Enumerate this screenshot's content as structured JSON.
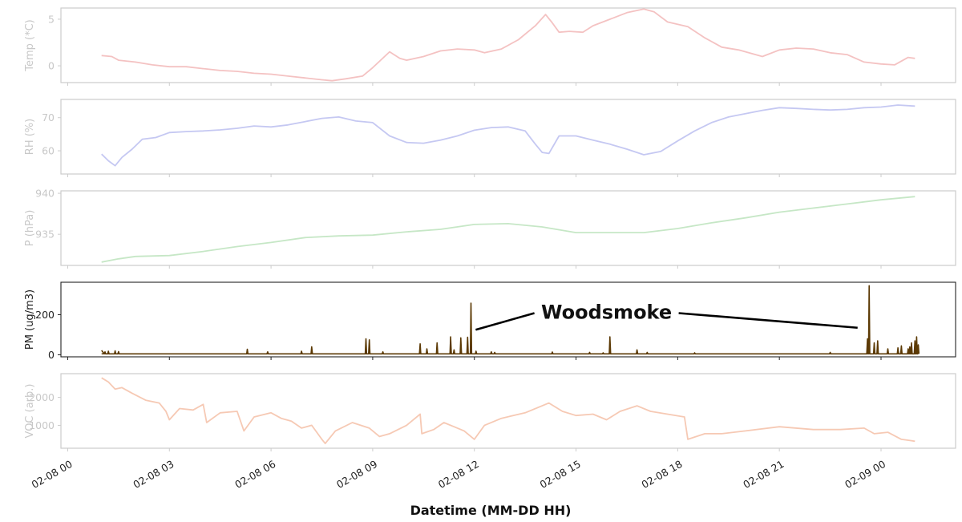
{
  "chart_data": {
    "type": "line",
    "xlabel": "Datetime (MM-DD HH)",
    "x_ticks": [
      "02-08 00",
      "02-08 03",
      "02-08 06",
      "02-08 09",
      "02-08 12",
      "02-08 15",
      "02-08 18",
      "02-08 21",
      "02-09 00"
    ],
    "x_tick_hours": [
      0,
      3,
      6,
      9,
      12,
      15,
      18,
      21,
      24
    ],
    "xlim_hours": [
      -0.2,
      26.2
    ],
    "panels": [
      {
        "id": "temp",
        "ylabel": "Temp (*C)",
        "color": "#f4c2c2",
        "faded": true,
        "ylim": [
          -1.8,
          6.2
        ],
        "yticks": [
          0,
          5
        ],
        "ytick_labels": [
          "0",
          "5"
        ],
        "x": [
          1.0,
          1.3,
          1.5,
          2,
          2.5,
          3,
          3.5,
          4,
          4.5,
          5,
          5.5,
          6,
          6.5,
          7,
          7.5,
          7.8,
          8.2,
          8.7,
          9,
          9.5,
          9.8,
          10,
          10.5,
          11,
          11.5,
          12,
          12.3,
          12.8,
          13.3,
          13.8,
          14.1,
          14.3,
          14.5,
          14.8,
          15.2,
          15.5,
          16,
          16.5,
          17,
          17.3,
          17.7,
          18.3,
          18.8,
          19.3,
          19.8,
          20.5,
          21,
          21.5,
          22,
          22.5,
          23,
          23.5,
          24,
          24.4,
          24.8,
          25.0
        ],
        "y": [
          1.1,
          1.0,
          0.6,
          0.4,
          0.1,
          -0.1,
          -0.1,
          -0.3,
          -0.5,
          -0.6,
          -0.8,
          -0.9,
          -1.1,
          -1.3,
          -1.5,
          -1.6,
          -1.4,
          -1.1,
          -0.2,
          1.5,
          0.8,
          0.6,
          1.0,
          1.6,
          1.8,
          1.7,
          1.4,
          1.8,
          2.8,
          4.3,
          5.5,
          4.6,
          3.6,
          3.7,
          3.6,
          4.3,
          5.0,
          5.7,
          6.1,
          5.8,
          4.7,
          4.2,
          3.0,
          2.0,
          1.7,
          1.0,
          1.7,
          1.9,
          1.8,
          1.4,
          1.2,
          0.4,
          0.2,
          0.1,
          0.9,
          0.8
        ]
      },
      {
        "id": "rh",
        "ylabel": "RH (%)",
        "color": "#c5c8f2",
        "faded": true,
        "ylim": [
          53,
          75.5
        ],
        "yticks": [
          60,
          70
        ],
        "ytick_labels": [
          "60",
          "70"
        ],
        "x": [
          1.0,
          1.2,
          1.4,
          1.6,
          1.9,
          2.2,
          2.6,
          3.0,
          3.5,
          4.0,
          4.5,
          5.0,
          5.5,
          6.0,
          6.5,
          7.0,
          7.5,
          8.0,
          8.5,
          9.0,
          9.5,
          10.0,
          10.5,
          11.0,
          11.5,
          12.0,
          12.5,
          13.0,
          13.5,
          13.8,
          14.0,
          14.2,
          14.5,
          15.0,
          15.5,
          16.0,
          16.5,
          17.0,
          17.5,
          18.0,
          18.5,
          19.0,
          19.5,
          20.0,
          20.5,
          21.0,
          21.5,
          22.0,
          22.5,
          23.0,
          23.5,
          24.0,
          24.5,
          25.0
        ],
        "y": [
          59,
          57,
          55.5,
          58,
          60.5,
          63.5,
          64,
          65.5,
          65.8,
          66,
          66.3,
          66.8,
          67.5,
          67.2,
          67.8,
          68.8,
          69.8,
          70.2,
          69,
          68.5,
          64.5,
          62.5,
          62.3,
          63.2,
          64.5,
          66.2,
          67,
          67.2,
          66,
          62,
          59.5,
          59.2,
          64.5,
          64.5,
          63.2,
          62,
          60.5,
          58.8,
          59.8,
          63,
          66,
          68.5,
          70.2,
          71.2,
          72.2,
          73,
          72.8,
          72.5,
          72.3,
          72.5,
          73,
          73.2,
          73.8,
          73.5
        ]
      },
      {
        "id": "p",
        "ylabel": "P (hPa)",
        "color": "#c6e7c6",
        "faded": true,
        "ylim": [
          931.2,
          940.3
        ],
        "yticks": [
          935,
          940
        ],
        "ytick_labels": [
          "935",
          "940"
        ],
        "x": [
          1.0,
          1.5,
          2,
          3,
          4,
          5,
          6,
          7,
          8,
          9,
          10,
          11,
          12,
          13,
          14,
          15,
          16,
          17,
          18,
          19,
          20,
          21,
          22,
          23,
          24,
          25
        ],
        "y": [
          931.6,
          932.0,
          932.3,
          932.4,
          932.9,
          933.5,
          934.0,
          934.6,
          934.8,
          934.9,
          935.3,
          935.6,
          936.2,
          936.3,
          935.9,
          935.2,
          935.2,
          935.2,
          935.7,
          936.4,
          937.0,
          937.7,
          938.2,
          938.7,
          939.2,
          939.6
        ]
      },
      {
        "id": "pm",
        "ylabel": "PM (ug/m3)",
        "color": "#5c3a05",
        "faded": false,
        "ylim": [
          -10,
          362
        ],
        "yticks": [
          0,
          200
        ],
        "ytick_labels": [
          "0",
          "200"
        ],
        "baseline": 5,
        "spikes": [
          [
            1.0,
            22
          ],
          [
            1.1,
            15
          ],
          [
            1.2,
            18
          ],
          [
            1.4,
            20
          ],
          [
            1.5,
            16
          ],
          [
            5.3,
            28
          ],
          [
            5.9,
            15
          ],
          [
            6.9,
            18
          ],
          [
            7.2,
            40
          ],
          [
            8.8,
            80
          ],
          [
            8.9,
            75
          ],
          [
            9.3,
            15
          ],
          [
            10.4,
            55
          ],
          [
            10.6,
            30
          ],
          [
            10.9,
            60
          ],
          [
            11.3,
            90
          ],
          [
            11.4,
            25
          ],
          [
            11.6,
            85
          ],
          [
            11.8,
            88
          ],
          [
            11.9,
            258
          ],
          [
            12.05,
            18
          ],
          [
            12.5,
            15
          ],
          [
            12.6,
            12
          ],
          [
            14.3,
            14
          ],
          [
            15.4,
            12
          ],
          [
            15.8,
            10
          ],
          [
            16.0,
            90
          ],
          [
            16.8,
            25
          ],
          [
            17.1,
            12
          ],
          [
            18.5,
            10
          ],
          [
            22.5,
            12
          ],
          [
            23.6,
            80
          ],
          [
            23.65,
            345
          ],
          [
            23.8,
            60
          ],
          [
            23.9,
            70
          ],
          [
            24.2,
            30
          ],
          [
            24.5,
            35
          ],
          [
            24.6,
            45
          ],
          [
            24.8,
            30
          ],
          [
            24.85,
            40
          ],
          [
            24.9,
            60
          ],
          [
            25.0,
            70
          ],
          [
            25.05,
            90
          ],
          [
            25.1,
            50
          ]
        ],
        "annotation": {
          "text": "Woodsmoke",
          "at_hours": [
            11.85,
            23.45
          ],
          "target_values": [
            125,
            135
          ],
          "label_hour": 15.9,
          "label_value": 212
        }
      },
      {
        "id": "voc",
        "ylabel": "VOC (arb.)",
        "color": "#f6c9b4",
        "faded": true,
        "ylim": [
          180,
          2850
        ],
        "yticks": [
          1000,
          2000
        ],
        "ytick_labels": [
          "1000",
          "2000"
        ],
        "x": [
          1.0,
          1.2,
          1.4,
          1.6,
          1.9,
          2.3,
          2.7,
          2.9,
          3.0,
          3.3,
          3.7,
          4.0,
          4.1,
          4.5,
          5.0,
          5.2,
          5.5,
          6.0,
          6.3,
          6.6,
          6.9,
          7.2,
          7.5,
          7.6,
          7.9,
          8.4,
          8.9,
          9.2,
          9.5,
          10.0,
          10.4,
          10.45,
          10.8,
          11.1,
          11.4,
          11.7,
          12.0,
          12.3,
          12.8,
          13.5,
          14.2,
          14.6,
          15.0,
          15.5,
          15.9,
          16.3,
          16.8,
          17.2,
          17.7,
          18.2,
          18.3,
          18.8,
          19.3,
          20,
          21,
          22,
          22.8,
          23.5,
          23.8,
          24.2,
          24.6,
          24.9,
          25.0
        ],
        "y": [
          2700,
          2550,
          2300,
          2350,
          2150,
          1900,
          1800,
          1500,
          1200,
          1600,
          1550,
          1750,
          1100,
          1450,
          1500,
          800,
          1300,
          1450,
          1250,
          1150,
          900,
          1000,
          500,
          350,
          800,
          1100,
          900,
          600,
          700,
          1000,
          1400,
          700,
          850,
          1100,
          950,
          800,
          500,
          1000,
          1250,
          1450,
          1800,
          1500,
          1350,
          1400,
          1200,
          1500,
          1700,
          1500,
          1400,
          1300,
          500,
          700,
          700,
          800,
          950,
          850,
          850,
          900,
          700,
          750,
          500,
          450,
          430
        ]
      }
    ]
  }
}
